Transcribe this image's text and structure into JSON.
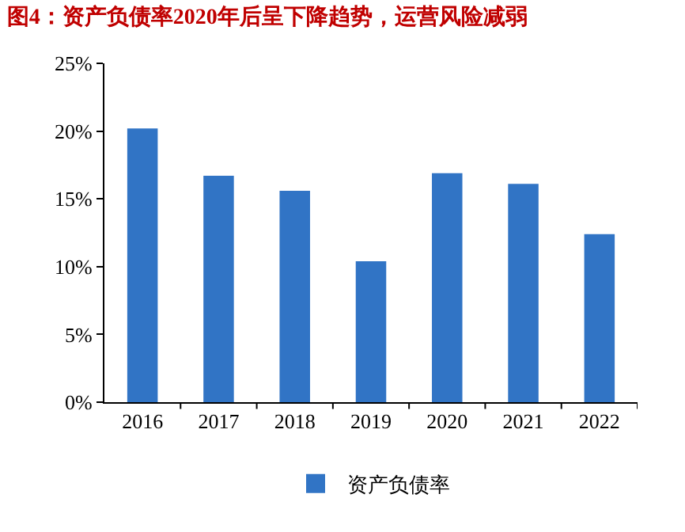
{
  "chart_data": {
    "type": "bar",
    "title": "图4：资产负债率2020年后呈下降趋势，运营风险减弱",
    "categories": [
      "2016",
      "2017",
      "2018",
      "2019",
      "2020",
      "2021",
      "2022"
    ],
    "series": [
      {
        "name": "资产负债率",
        "color": "#3174c5",
        "values": [
          20.2,
          16.7,
          15.6,
          10.4,
          16.9,
          16.1,
          12.4
        ]
      }
    ],
    "ylim": [
      0,
      25
    ],
    "yticks": [
      {
        "value": 0,
        "label": "0%"
      },
      {
        "value": 5,
        "label": "5%"
      },
      {
        "value": 10,
        "label": "10%"
      },
      {
        "value": 15,
        "label": "15%"
      },
      {
        "value": 20,
        "label": "20%"
      },
      {
        "value": 25,
        "label": "25%"
      }
    ],
    "grid": false,
    "legend": "bottom"
  }
}
